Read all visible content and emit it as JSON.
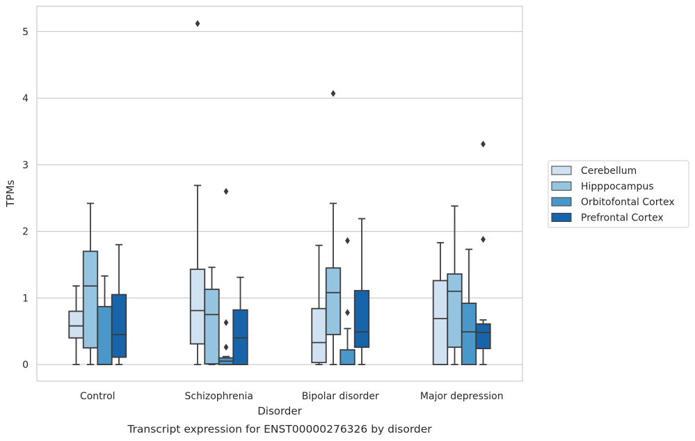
{
  "caption": "Transcript expression for ENST00000276326 by disorder",
  "chart_data": {
    "type": "boxplot",
    "xlabel": "Disorder",
    "ylabel": "TPMs",
    "ylim": [
      -0.25,
      5.38
    ],
    "yticks": [
      0,
      1,
      2,
      3,
      4,
      5
    ],
    "grid": "horizontal",
    "legend_position": "right",
    "categories": [
      "Control",
      "Schizophrenia",
      "Bipolar disorder",
      "Major depression"
    ],
    "series": [
      {
        "name": "Cerebellum",
        "color": "#d0e1f2",
        "boxes": [
          {
            "whisker_low": 0.0,
            "q1": 0.4,
            "median": 0.58,
            "q3": 0.8,
            "whisker_high": 1.18,
            "outliers": []
          },
          {
            "whisker_low": 0.0,
            "q1": 0.31,
            "median": 0.81,
            "q3": 1.43,
            "whisker_high": 2.69,
            "outliers": [
              5.12
            ]
          },
          {
            "whisker_low": 0.0,
            "q1": 0.03,
            "median": 0.33,
            "q3": 0.84,
            "whisker_high": 1.79,
            "outliers": []
          },
          {
            "whisker_low": 0.0,
            "q1": 0.0,
            "median": 0.69,
            "q3": 1.26,
            "whisker_high": 1.83,
            "outliers": []
          }
        ]
      },
      {
        "name": "Hipppocampus",
        "color": "#94c4df",
        "boxes": [
          {
            "whisker_low": 0.0,
            "q1": 0.25,
            "median": 1.18,
            "q3": 1.7,
            "whisker_high": 2.42,
            "outliers": []
          },
          {
            "whisker_low": 0.0,
            "q1": 0.01,
            "median": 0.75,
            "q3": 1.13,
            "whisker_high": 1.46,
            "outliers": []
          },
          {
            "whisker_low": 0.0,
            "q1": 0.45,
            "median": 1.08,
            "q3": 1.45,
            "whisker_high": 2.42,
            "outliers": [
              4.07
            ]
          },
          {
            "whisker_low": 0.0,
            "q1": 0.26,
            "median": 1.1,
            "q3": 1.36,
            "whisker_high": 2.38,
            "outliers": []
          }
        ]
      },
      {
        "name": "Orbitofontal Cortex",
        "color": "#4a98c9",
        "boxes": [
          {
            "whisker_low": 0.0,
            "q1": 0.0,
            "median": 0.0,
            "q3": 0.87,
            "whisker_high": 1.33,
            "outliers": []
          },
          {
            "whisker_low": 0.0,
            "q1": 0.0,
            "median": 0.05,
            "q3": 0.1,
            "whisker_high": 0.12,
            "outliers": [
              0.26,
              0.63,
              2.6
            ]
          },
          {
            "whisker_low": 0.0,
            "q1": 0.0,
            "median": 0.0,
            "q3": 0.22,
            "whisker_high": 0.54,
            "outliers": [
              0.78,
              1.86
            ]
          },
          {
            "whisker_low": 0.0,
            "q1": 0.0,
            "median": 0.49,
            "q3": 0.92,
            "whisker_high": 1.73,
            "outliers": []
          }
        ]
      },
      {
        "name": "Prefrontal Cortex",
        "color": "#1764ab",
        "boxes": [
          {
            "whisker_low": 0.0,
            "q1": 0.11,
            "median": 0.45,
            "q3": 1.05,
            "whisker_high": 1.8,
            "outliers": []
          },
          {
            "whisker_low": 0.0,
            "q1": 0.0,
            "median": 0.4,
            "q3": 0.82,
            "whisker_high": 1.31,
            "outliers": []
          },
          {
            "whisker_low": 0.0,
            "q1": 0.26,
            "median": 0.49,
            "q3": 1.11,
            "whisker_high": 2.19,
            "outliers": []
          },
          {
            "whisker_low": 0.0,
            "q1": 0.24,
            "median": 0.48,
            "q3": 0.61,
            "whisker_high": 0.67,
            "outliers": [
              1.88,
              3.31
            ]
          }
        ]
      }
    ]
  }
}
